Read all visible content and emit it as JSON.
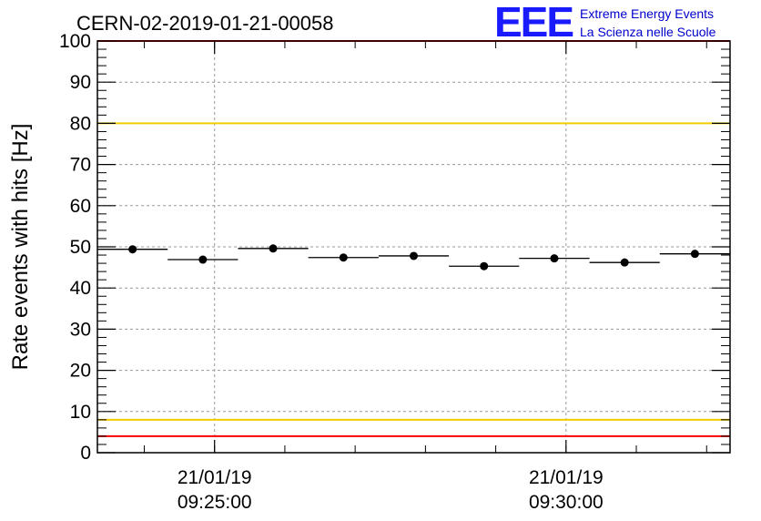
{
  "run_id": "CERN-02-2019-01-21-00058",
  "logo": {
    "mark": "EEE",
    "line1": "Extreme Energy Events",
    "line2": "La Scienza nelle Scuole",
    "color": "#1a1aff"
  },
  "colors": {
    "red_limit": "#ff0000",
    "yellow_limit": "#f2cc00",
    "marker": "#000000",
    "grid": "#999999"
  },
  "chart_data": {
    "type": "scatter",
    "ylabel": "Rate events with hits [Hz]",
    "xlabel": "",
    "ylim": [
      0,
      100
    ],
    "yticks": [
      0,
      10,
      20,
      30,
      40,
      50,
      60,
      70,
      80,
      90,
      100
    ],
    "xlim": [
      "2019-01-21 09:23:20",
      "2019-01-21 09:32:20"
    ],
    "xticks": [
      {
        "time": "2019-01-21 09:25:00",
        "date_label": "21/01/19",
        "time_label": "09:25:00"
      },
      {
        "time": "2019-01-21 09:30:00",
        "date_label": "21/01/19",
        "time_label": "09:30:00"
      }
    ],
    "grid": true,
    "bin_width_seconds": 60,
    "points": [
      {
        "time": "2019-01-21 09:23:50",
        "rate": 49.4
      },
      {
        "time": "2019-01-21 09:24:50",
        "rate": 46.9
      },
      {
        "time": "2019-01-21 09:25:50",
        "rate": 49.6
      },
      {
        "time": "2019-01-21 09:26:50",
        "rate": 47.4
      },
      {
        "time": "2019-01-21 09:27:50",
        "rate": 47.8
      },
      {
        "time": "2019-01-21 09:28:50",
        "rate": 45.3
      },
      {
        "time": "2019-01-21 09:29:50",
        "rate": 47.2
      },
      {
        "time": "2019-01-21 09:30:50",
        "rate": 46.2
      },
      {
        "time": "2019-01-21 09:31:50",
        "rate": 48.3
      }
    ],
    "reference_lines": [
      {
        "value": 100,
        "color": "red"
      },
      {
        "value": 80,
        "color": "yellow"
      },
      {
        "value": 8,
        "color": "yellow"
      },
      {
        "value": 4,
        "color": "red"
      }
    ]
  }
}
